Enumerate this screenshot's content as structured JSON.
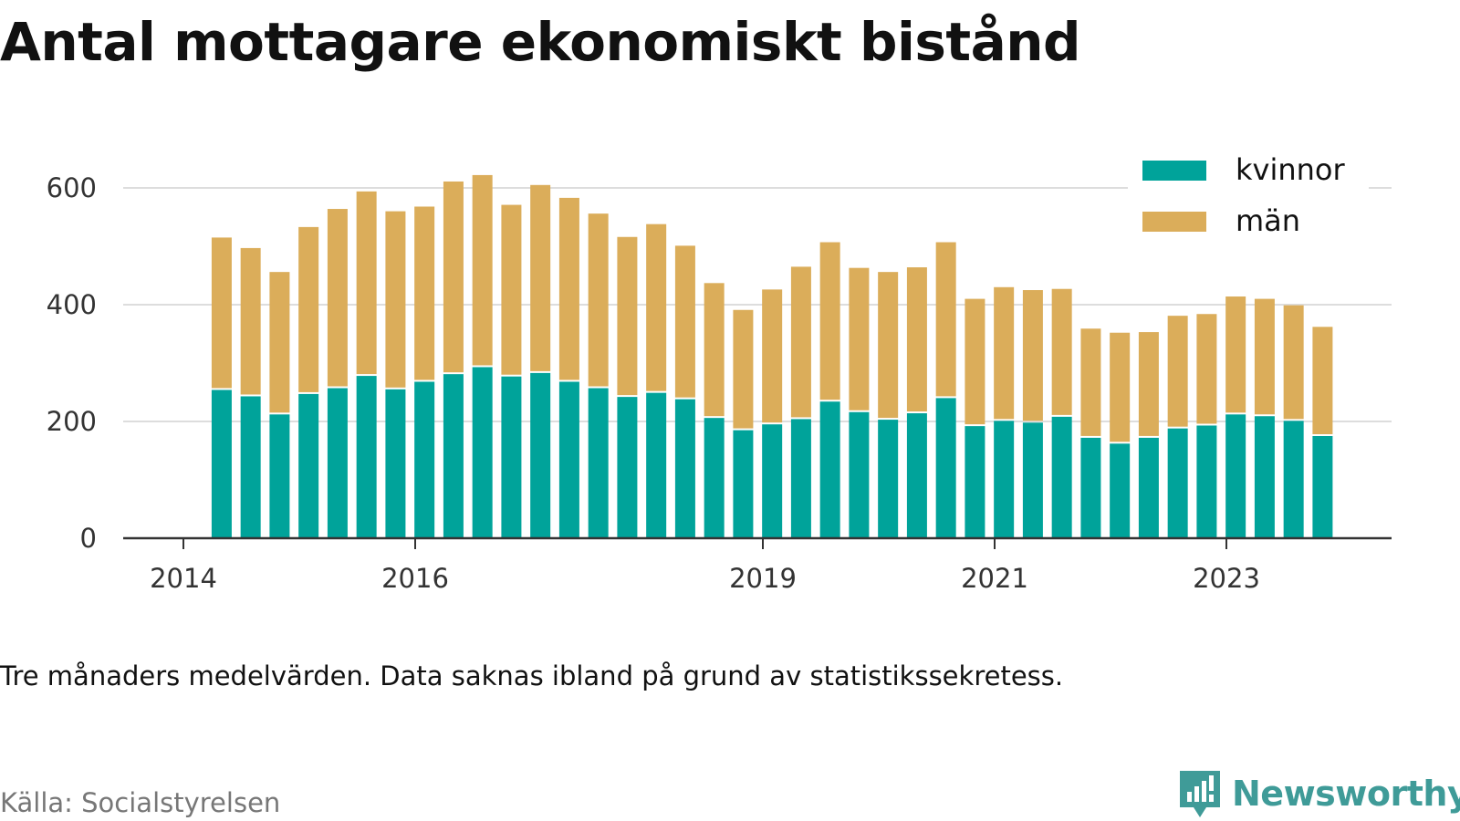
{
  "title": "Antal mottagare ekonomiskt bistånd",
  "note": "Tre månaders medelvärden. Data saknas ibland på grund av statistikssekretess.",
  "source": "Källa: Socialstyrelsen",
  "brand": {
    "name": "Newsworthy",
    "icon": "newsworthy-logo-icon",
    "color": "#3f9b98"
  },
  "chart_data": {
    "type": "bar",
    "stacked": true,
    "title": "Antal mottagare ekonomiskt bistånd",
    "xlabel": "",
    "ylabel": "",
    "ylim": [
      0,
      640
    ],
    "yticks": [
      0,
      200,
      400,
      600
    ],
    "xlim": [
      2013.5,
      2024.5
    ],
    "xtick_labels": [
      "2014",
      "2016",
      "2019",
      "2021",
      "2023"
    ],
    "xtick_values": [
      2014,
      2016,
      2019,
      2021,
      2023
    ],
    "grid": "horizontal",
    "legend_position": "top-right",
    "x": [
      2014.33,
      2014.58,
      2014.83,
      2015.08,
      2015.33,
      2015.58,
      2015.83,
      2016.08,
      2016.33,
      2016.58,
      2016.83,
      2017.08,
      2017.33,
      2017.58,
      2017.83,
      2018.08,
      2018.33,
      2018.58,
      2018.83,
      2019.08,
      2019.33,
      2019.58,
      2019.83,
      2020.08,
      2020.33,
      2020.58,
      2020.83,
      2021.08,
      2021.33,
      2021.58,
      2021.83,
      2022.08,
      2022.33,
      2022.58,
      2022.83,
      2023.08,
      2023.33,
      2023.58,
      2023.83
    ],
    "series": [
      {
        "name": "kvinnor",
        "color": "#00a39a",
        "values": [
          254,
          243,
          212,
          247,
          257,
          278,
          255,
          268,
          281,
          293,
          277,
          283,
          268,
          257,
          242,
          249,
          238,
          206,
          185,
          195,
          204,
          234,
          216,
          203,
          214,
          240,
          192,
          201,
          198,
          208,
          172,
          162,
          172,
          188,
          193,
          212,
          209,
          201,
          175
        ]
      },
      {
        "name": "män",
        "color": "#dbad5a",
        "values": [
          261,
          254,
          244,
          286,
          307,
          316,
          305,
          300,
          330,
          329,
          294,
          322,
          315,
          299,
          274,
          289,
          263,
          231,
          206,
          231,
          261,
          273,
          247,
          253,
          250,
          267,
          218,
          229,
          227,
          219,
          187,
          190,
          181,
          193,
          191,
          202,
          201,
          198,
          187
        ]
      }
    ]
  }
}
